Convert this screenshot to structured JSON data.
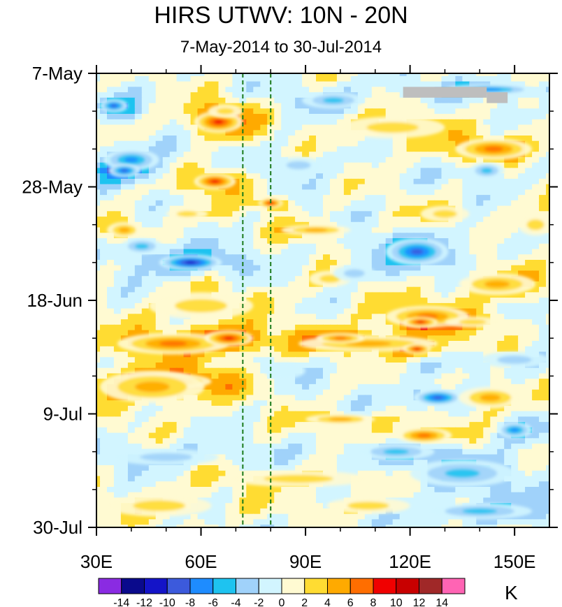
{
  "chart_data": {
    "type": "heatmap",
    "title": "HIRS UTWV: 10N - 20N",
    "subtitle": "7-May-2014 to 30-Jul-2014",
    "xlabel": "",
    "ylabel": "",
    "x_axis": {
      "min": 30,
      "max": 160,
      "ticks": [
        30,
        60,
        90,
        120,
        150
      ],
      "tick_labels": [
        "30E",
        "60E",
        "90E",
        "120E",
        "150E"
      ]
    },
    "y_axis": {
      "start": "7-May",
      "end": "30-Jul",
      "days": 84,
      "ticks": [
        0,
        21,
        42,
        63,
        84
      ],
      "tick_labels": [
        "7-May",
        "28-May",
        "18-Jun",
        "9-Jul",
        "30-Jul"
      ],
      "direction": "top-to-bottom"
    },
    "reference_lines_lon": [
      72,
      80
    ],
    "colorbar": {
      "units": "K",
      "levels": [
        -14,
        -12,
        -10,
        -8,
        -6,
        -4,
        -2,
        0,
        2,
        4,
        6,
        8,
        10,
        12,
        14
      ],
      "tick_labels": [
        "-14",
        "-12",
        "-10",
        "-8",
        "-6",
        "-4",
        "-2",
        "0",
        "2",
        "4",
        "6",
        "8",
        "10",
        "12",
        "14"
      ],
      "colors": [
        "#8a2be2",
        "#0a0a8c",
        "#1414c8",
        "#3c5adc",
        "#1e8cff",
        "#1ec3f0",
        "#a0d2fa",
        "#d2f5ff",
        "#fffad2",
        "#ffdc32",
        "#ffaa00",
        "#ff6e00",
        "#f00000",
        "#c80000",
        "#a02828",
        "#ff64b4"
      ]
    },
    "missing_color": "#bebebe",
    "features": [
      {
        "lon": 65,
        "day": 9,
        "lon_width": 14,
        "day_height": 4,
        "value": 10
      },
      {
        "lon": 67,
        "day": 7,
        "lon_width": 10,
        "day_height": 2.5,
        "value": 4
      },
      {
        "lon": 40,
        "day": 16,
        "lon_width": 16,
        "day_height": 4,
        "value": -7
      },
      {
        "lon": 35,
        "day": 6,
        "lon_width": 8,
        "day_height": 2.5,
        "value": -9
      },
      {
        "lon": 38,
        "day": 18,
        "lon_width": 9,
        "day_height": 2.5,
        "value": -10
      },
      {
        "lon": 64,
        "day": 20,
        "lon_width": 12,
        "day_height": 3,
        "value": 9
      },
      {
        "lon": 80,
        "day": 24,
        "lon_width": 7,
        "day_height": 2,
        "value": 9
      },
      {
        "lon": 57,
        "day": 35,
        "lon_width": 18,
        "day_height": 3,
        "value": -11
      },
      {
        "lon": 43,
        "day": 32,
        "lon_width": 12,
        "day_height": 3,
        "value": -5
      },
      {
        "lon": 122,
        "day": 33,
        "lon_width": 18,
        "day_height": 5,
        "value": -9
      },
      {
        "lon": 93,
        "day": 29,
        "lon_width": 20,
        "day_height": 2,
        "value": 5
      },
      {
        "lon": 144,
        "day": 14,
        "lon_width": 22,
        "day_height": 4,
        "value": 8
      },
      {
        "lon": 115,
        "day": 10,
        "lon_width": 30,
        "day_height": 4,
        "value": 4
      },
      {
        "lon": 98,
        "day": 5,
        "lon_width": 18,
        "day_height": 3,
        "value": -5
      },
      {
        "lon": 143,
        "day": 3,
        "lon_width": 26,
        "day_height": 2,
        "value": -7
      },
      {
        "lon": 142,
        "day": 18,
        "lon_width": 10,
        "day_height": 3,
        "value": -6
      },
      {
        "lon": 88,
        "day": 17,
        "lon_width": 14,
        "day_height": 3,
        "value": -3
      },
      {
        "lon": 130,
        "day": 26,
        "lon_width": 14,
        "day_height": 3,
        "value": 4
      },
      {
        "lon": 52,
        "day": 50,
        "lon_width": 32,
        "day_height": 4,
        "value": 7
      },
      {
        "lon": 68,
        "day": 49,
        "lon_width": 14,
        "day_height": 3,
        "value": 10
      },
      {
        "lon": 50,
        "day": 57,
        "lon_width": 26,
        "day_height": 3,
        "value": 10
      },
      {
        "lon": 46,
        "day": 58,
        "lon_width": 30,
        "day_height": 6,
        "value": 5
      },
      {
        "lon": 60,
        "day": 43,
        "lon_width": 30,
        "day_height": 5,
        "value": 3
      },
      {
        "lon": 125,
        "day": 45,
        "lon_width": 24,
        "day_height": 4,
        "value": 7
      },
      {
        "lon": 123,
        "day": 46,
        "lon_width": 10,
        "day_height": 2,
        "value": 10
      },
      {
        "lon": 145,
        "day": 39,
        "lon_width": 22,
        "day_height": 4,
        "value": 6
      },
      {
        "lon": 108,
        "day": 50,
        "lon_width": 40,
        "day_height": 3,
        "value": 5
      },
      {
        "lon": 100,
        "day": 49,
        "lon_width": 14,
        "day_height": 2,
        "value": 8
      },
      {
        "lon": 122,
        "day": 51,
        "lon_width": 8,
        "day_height": 2,
        "value": 10
      },
      {
        "lon": 97,
        "day": 38,
        "lon_width": 12,
        "day_height": 3,
        "value": 4
      },
      {
        "lon": 128,
        "day": 60,
        "lon_width": 14,
        "day_height": 3,
        "value": -9
      },
      {
        "lon": 143,
        "day": 60,
        "lon_width": 18,
        "day_height": 4,
        "value": 6
      },
      {
        "lon": 124,
        "day": 67,
        "lon_width": 16,
        "day_height": 3,
        "value": 8
      },
      {
        "lon": 100,
        "day": 64,
        "lon_width": 20,
        "day_height": 2,
        "value": 5
      },
      {
        "lon": 116,
        "day": 70,
        "lon_width": 22,
        "day_height": 3,
        "value": -6
      },
      {
        "lon": 135,
        "day": 74,
        "lon_width": 30,
        "day_height": 5,
        "value": -6
      },
      {
        "lon": 150,
        "day": 66,
        "lon_width": 10,
        "day_height": 3,
        "value": -7
      },
      {
        "lon": 88,
        "day": 75,
        "lon_width": 40,
        "day_height": 3,
        "value": 4
      },
      {
        "lon": 50,
        "day": 71,
        "lon_width": 30,
        "day_height": 3,
        "value": -4
      },
      {
        "lon": 48,
        "day": 80,
        "lon_width": 30,
        "day_height": 4,
        "value": 3
      },
      {
        "lon": 140,
        "day": 81,
        "lon_width": 30,
        "day_height": 3,
        "value": -6
      },
      {
        "lon": 108,
        "day": 80,
        "lon_width": 24,
        "day_height": 3,
        "value": 3
      },
      {
        "lon": 38,
        "day": 29,
        "lon_width": 10,
        "day_height": 3,
        "value": 6
      },
      {
        "lon": 104,
        "day": 37,
        "lon_width": 12,
        "day_height": 3,
        "value": -3
      },
      {
        "lon": 156,
        "day": 28,
        "lon_width": 10,
        "day_height": 4,
        "value": 4
      },
      {
        "lon": 84,
        "day": 55,
        "lon_width": 12,
        "day_height": 3,
        "value": -2
      },
      {
        "lon": 56,
        "day": 26,
        "lon_width": 12,
        "day_height": 2,
        "value": 4
      },
      {
        "lon": 150,
        "day": 53,
        "lon_width": 20,
        "day_height": 3,
        "value": -3
      },
      {
        "lon": 138,
        "day": 46,
        "lon_width": 16,
        "day_height": 2,
        "value": 4
      }
    ],
    "missing_regions": [
      {
        "lon_min": 118,
        "lon_max": 142,
        "day_min": 2.5,
        "day_max": 4.5
      },
      {
        "lon_min": 142,
        "lon_max": 148,
        "day_min": 3.5,
        "day_max": 5.5
      }
    ]
  }
}
